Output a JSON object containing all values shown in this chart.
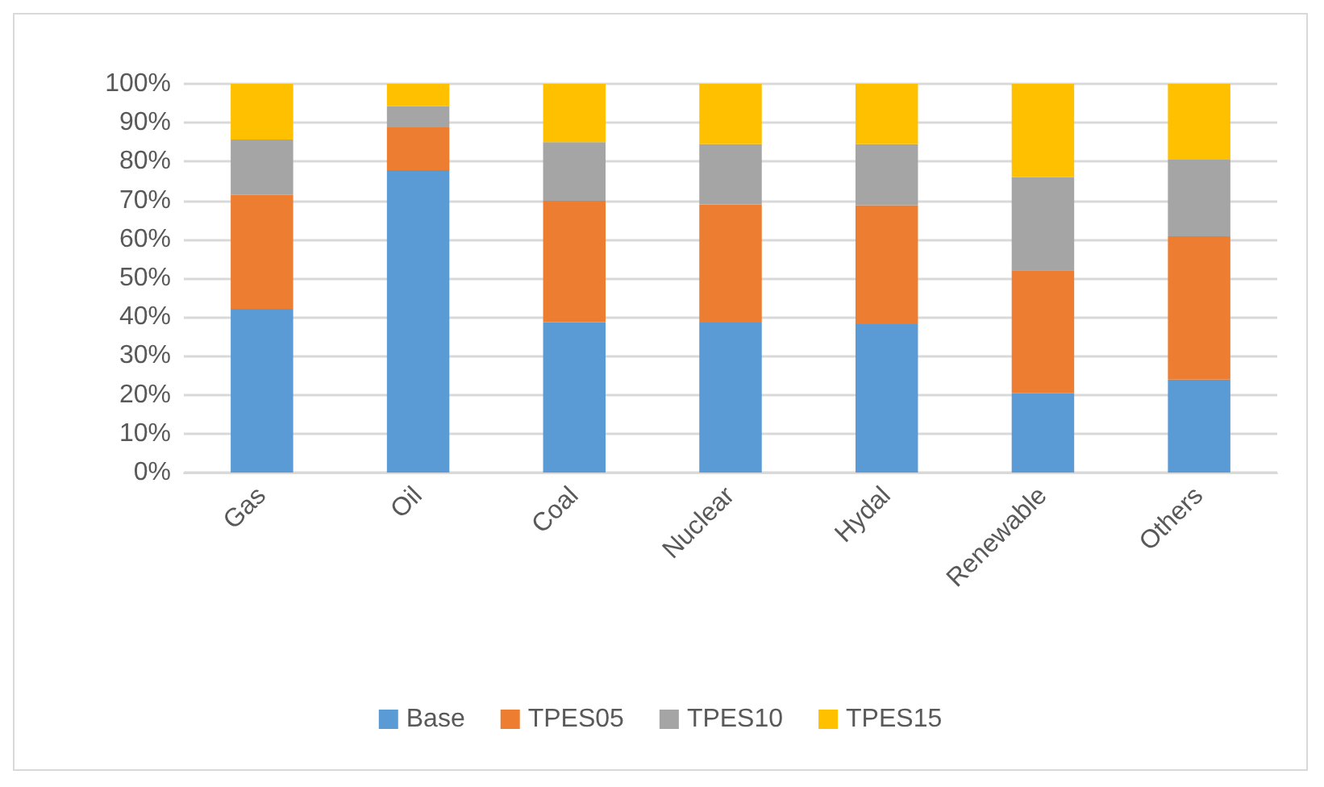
{
  "chart_data": {
    "type": "bar",
    "stacked": true,
    "categories": [
      "Gas",
      "Oil",
      "Coal",
      "Nuclear",
      "Hydal",
      "Renewable",
      "Others"
    ],
    "series": [
      {
        "name": "Base",
        "color": "#5b9bd5",
        "values": [
          42.1,
          77.8,
          38.7,
          38.6,
          38.2,
          20.4,
          23.9
        ]
      },
      {
        "name": "TPES05",
        "color": "#ed7d31",
        "values": [
          29.3,
          11,
          31.2,
          30.4,
          30.6,
          31.6,
          36.9
        ]
      },
      {
        "name": "TPES10",
        "color": "#a5a5a5",
        "values": [
          14.3,
          5.5,
          15.1,
          15.5,
          15.7,
          24,
          19.7
        ]
      },
      {
        "name": "TPES15",
        "color": "#ffc000",
        "values": [
          14.3,
          5.7,
          15,
          15.5,
          15.5,
          24,
          19.5
        ]
      }
    ],
    "ylim": [
      0,
      100
    ],
    "yticks": [
      {
        "value": 0,
        "label": "0%"
      },
      {
        "value": 10,
        "label": "10%"
      },
      {
        "value": 20,
        "label": "20%"
      },
      {
        "value": 30,
        "label": "30%"
      },
      {
        "value": 40,
        "label": "40%"
      },
      {
        "value": 50,
        "label": "50%"
      },
      {
        "value": 60,
        "label": "60%"
      },
      {
        "value": 70,
        "label": "70%"
      },
      {
        "value": 80,
        "label": "80%"
      },
      {
        "value": 90,
        "label": "90%"
      },
      {
        "value": 100,
        "label": "100%"
      }
    ],
    "grid": "y",
    "legend": "bottom"
  }
}
